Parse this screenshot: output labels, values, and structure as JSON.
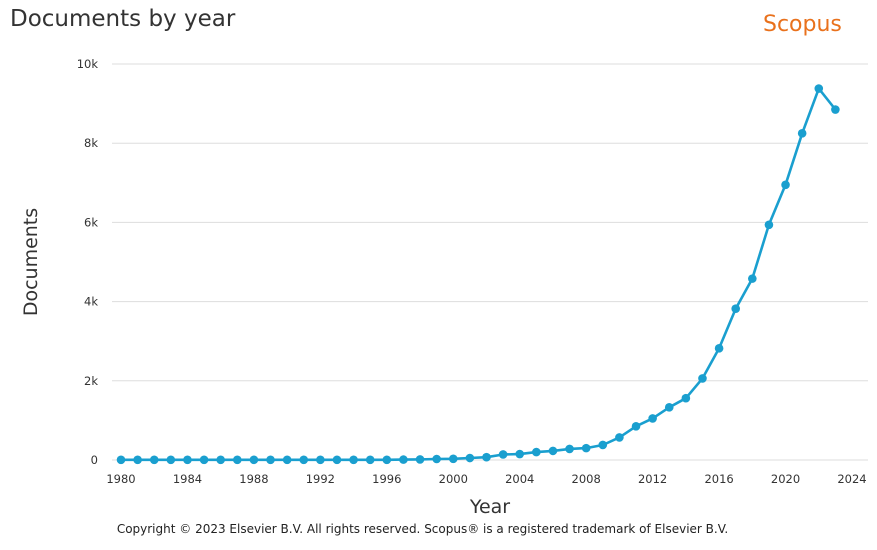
{
  "header": {
    "title": "Documents by year",
    "brand": "Scopus"
  },
  "footer": {
    "copyright": "Copyright © 2023 Elsevier B.V. All rights reserved. Scopus® is a registered trademark of Elsevier B.V."
  },
  "colors": {
    "series": "#1a9fcf",
    "brand": "#e9711c",
    "grid": "#dddddd"
  },
  "chart_data": {
    "type": "line",
    "title": "Documents by year",
    "xlabel": "Year",
    "ylabel": "Documents",
    "xlim": [
      1980,
      2024
    ],
    "ylim": [
      0,
      10000
    ],
    "x_ticks": [
      1980,
      1984,
      1988,
      1992,
      1996,
      2000,
      2004,
      2008,
      2012,
      2016,
      2020,
      2024
    ],
    "y_ticks": [
      {
        "value": 0,
        "label": "0"
      },
      {
        "value": 2000,
        "label": "2k"
      },
      {
        "value": 4000,
        "label": "4k"
      },
      {
        "value": 6000,
        "label": "6k"
      },
      {
        "value": 8000,
        "label": "8k"
      },
      {
        "value": 10000,
        "label": "10k"
      }
    ],
    "grid": "horizontal",
    "legend": "none",
    "series": [
      {
        "x": [
          1980,
          1981,
          1982,
          1983,
          1984,
          1985,
          1986,
          1987,
          1988,
          1989,
          1990,
          1991,
          1992,
          1993,
          1994,
          1995,
          1996,
          1997,
          1998,
          1999,
          2000,
          2001,
          2002,
          2003,
          2004,
          2005,
          2006,
          2007,
          2008,
          2009,
          2010,
          2011,
          2012,
          2013,
          2014,
          2015,
          2016,
          2017,
          2018,
          2019,
          2020,
          2021,
          2022,
          2023
        ],
        "values": [
          5,
          5,
          5,
          5,
          5,
          5,
          5,
          5,
          5,
          5,
          5,
          5,
          5,
          5,
          5,
          5,
          5,
          10,
          15,
          25,
          30,
          50,
          70,
          140,
          150,
          200,
          230,
          280,
          300,
          380,
          570,
          850,
          1050,
          1330,
          1560,
          2060,
          2820,
          3820,
          4580,
          5940,
          6950,
          8250,
          9380,
          8850
        ]
      }
    ]
  }
}
